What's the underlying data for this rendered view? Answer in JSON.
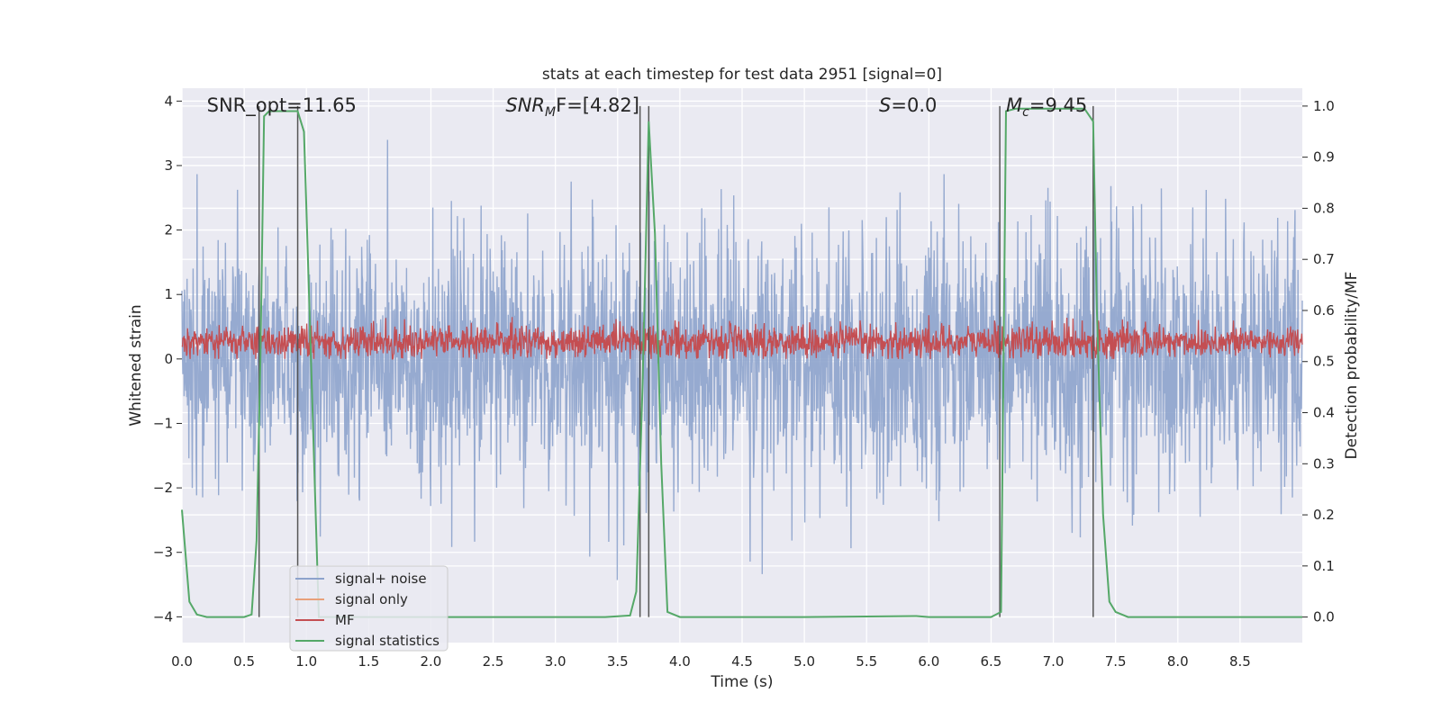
{
  "chart_data": {
    "type": "line",
    "title": "stats at each timestep for test data 2951 [signal=0]",
    "xlabel": "Time (s)",
    "ylabel": "Whitened strain",
    "ylabel_right": "Detection probability/MF",
    "xlim": [
      0.0,
      9.0
    ],
    "ylim": [
      -4.4,
      4.2
    ],
    "ylim_right": [
      -0.05,
      1.035
    ],
    "xticks": [
      "0.0",
      "0.5",
      "1.0",
      "1.5",
      "2.0",
      "2.5",
      "3.0",
      "3.5",
      "4.0",
      "4.5",
      "5.0",
      "5.5",
      "6.0",
      "6.5",
      "7.0",
      "7.5",
      "8.0",
      "8.5"
    ],
    "yticks": [
      "−4",
      "−3",
      "−2",
      "−1",
      "0",
      "1",
      "2",
      "3",
      "4"
    ],
    "yticks_right": [
      "0.0",
      "0.1",
      "0.2",
      "0.3",
      "0.4",
      "0.5",
      "0.6",
      "0.7",
      "0.8",
      "0.9",
      "1.0"
    ],
    "grid": true,
    "legend_position": "lower-left",
    "annotations": [
      {
        "text": "SNR_opt=11.65",
        "x": 0.2
      },
      {
        "math": true,
        "base": "SNR",
        "sub": "M",
        "rest": "F=[4.82]",
        "x": 2.6
      },
      {
        "math": true,
        "base": "S",
        "sub": "",
        "rest": "=0.0",
        "x": 5.6
      },
      {
        "math": true,
        "base": "M",
        "sub": "c",
        "rest": "=9.45",
        "x": 6.62
      }
    ],
    "series": [
      {
        "name": "signal+ noise",
        "color": "#8da3cc",
        "noise_band": {
          "center": 0.0,
          "typical_amplitude": 1.4,
          "max_amplitude": 4.0
        }
      },
      {
        "name": "signal only",
        "color": "#e8a07a",
        "values": []
      },
      {
        "name": "MF",
        "color": "#c44e52",
        "noise_band": {
          "center": 0.27,
          "low": 0.0,
          "high": 0.75
        }
      },
      {
        "name": "signal statistics",
        "color": "#55a868",
        "x": [
          0.0,
          0.06,
          0.12,
          0.2,
          0.3,
          0.4,
          0.5,
          0.56,
          0.6,
          0.63,
          0.66,
          0.7,
          0.75,
          0.85,
          0.93,
          0.98,
          1.0,
          1.05,
          1.1,
          1.5,
          2.5,
          3.4,
          3.6,
          3.65,
          3.7,
          3.75,
          3.8,
          3.85,
          3.9,
          4.0,
          5.0,
          5.9,
          6.0,
          6.5,
          6.58,
          6.62,
          6.7,
          7.0,
          7.25,
          7.32,
          7.35,
          7.4,
          7.45,
          7.5,
          7.6,
          8.0,
          9.0
        ],
        "y": [
          0.21,
          0.03,
          0.005,
          0.0,
          0.0,
          0.0,
          0.0,
          0.005,
          0.15,
          0.5,
          0.98,
          0.99,
          0.99,
          0.99,
          0.99,
          0.95,
          0.8,
          0.4,
          0.0,
          0.0,
          0.0,
          0.0,
          0.003,
          0.05,
          0.45,
          0.97,
          0.75,
          0.3,
          0.01,
          0.0,
          0.0,
          0.002,
          0.0,
          0.0,
          0.01,
          0.99,
          0.995,
          0.995,
          0.995,
          0.97,
          0.6,
          0.2,
          0.03,
          0.01,
          0.0,
          0.0,
          0.0
        ]
      }
    ],
    "vertical_lines": [
      0.62,
      0.93,
      3.68,
      3.75,
      6.57,
      7.32
    ]
  }
}
